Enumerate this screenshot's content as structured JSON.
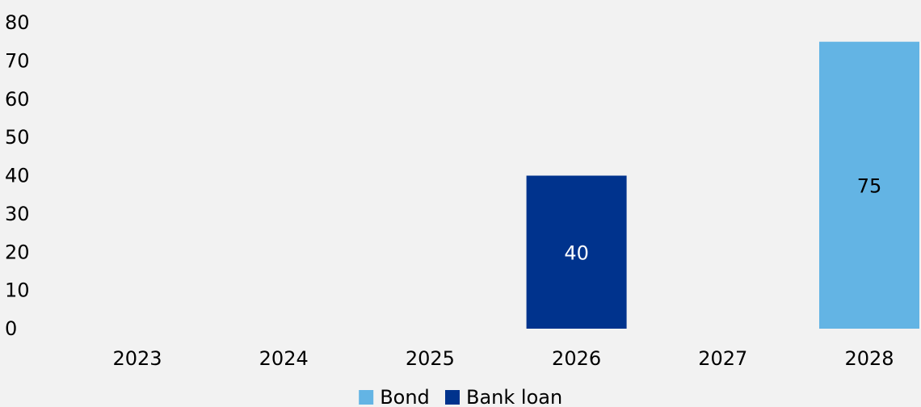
{
  "chart_data": {
    "type": "bar",
    "stacked": true,
    "categories": [
      "2023",
      "2024",
      "2025",
      "2026",
      "2027",
      "2028"
    ],
    "series": [
      {
        "name": "Bond",
        "color": "#63b4e4",
        "values": [
          0,
          0,
          0,
          0,
          0,
          75
        ]
      },
      {
        "name": "Bank loan",
        "color": "#00338d",
        "values": [
          0,
          0,
          0,
          40,
          0,
          0
        ]
      }
    ],
    "data_labels": [
      {
        "category": "2026",
        "series": "Bank loan",
        "text": "40",
        "color": "#ffffff"
      },
      {
        "category": "2028",
        "series": "Bond",
        "text": "75",
        "color": "#000000"
      }
    ],
    "yticks": [
      "0",
      "10",
      "20",
      "30",
      "40",
      "50",
      "60",
      "70",
      "80"
    ],
    "ylim": [
      0,
      80
    ],
    "grid": false,
    "legend_position": "bottom"
  }
}
